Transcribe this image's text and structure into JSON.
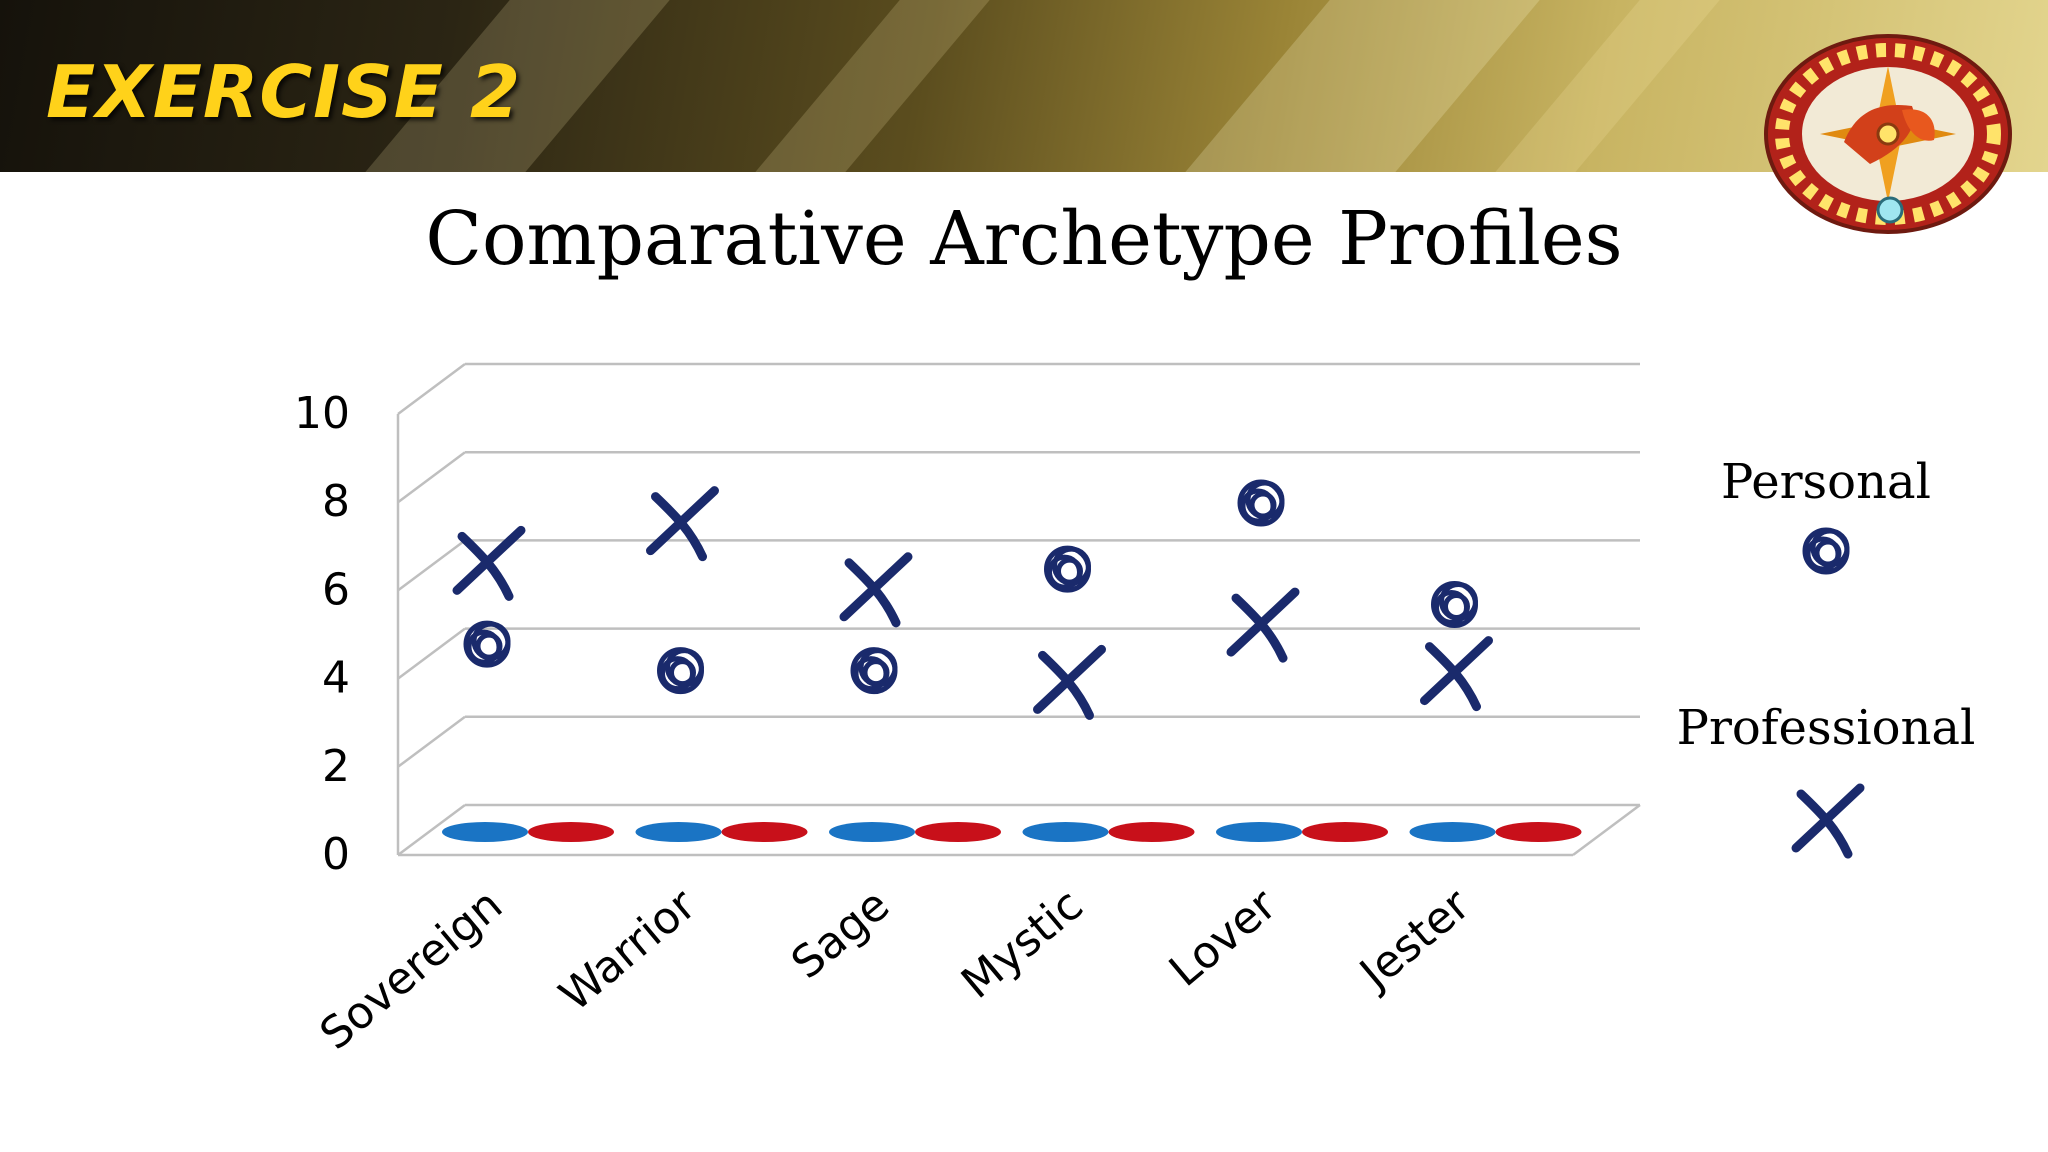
{
  "header": {
    "title": "EXERCISE 2"
  },
  "colors": {
    "marker": "#1a2a6c",
    "personal_disc": "#1a74c4",
    "professional_disc": "#c8101a",
    "title_yellow": "#ffd21a"
  },
  "logo": {
    "icon": "compass-icon"
  },
  "chart_data": {
    "type": "scatter",
    "title": "Comparative Archetype Profiles",
    "categories": [
      "Sovereign",
      "Warrior",
      "Sage",
      "Mystic",
      "Lover",
      "Jester"
    ],
    "ylim": [
      0,
      10
    ],
    "yticks": [
      "0",
      "2",
      "4",
      "6",
      "8",
      "10"
    ],
    "grid": true,
    "legend_position": "right",
    "series": [
      {
        "name": "Personal",
        "marker": "scribble-circle",
        "values": [
          4.6,
          4.0,
          4.0,
          6.3,
          7.8,
          5.5
        ],
        "base_values": [
          0,
          0,
          0,
          0,
          0,
          0
        ]
      },
      {
        "name": "Professional",
        "marker": "cross",
        "values": [
          6.5,
          7.4,
          5.9,
          3.8,
          5.1,
          4.0
        ],
        "base_values": [
          0,
          0,
          0,
          0,
          0,
          0
        ]
      }
    ]
  }
}
